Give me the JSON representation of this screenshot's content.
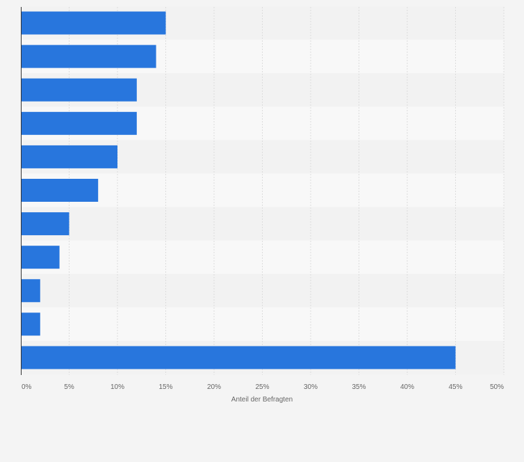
{
  "chart_data": {
    "type": "bar",
    "orientation": "horizontal",
    "title": "",
    "xlabel": "Anteil der Befragten",
    "ylabel": "",
    "categories": [
      "",
      "",
      "",
      "",
      "",
      "",
      "",
      "",
      "",
      "",
      ""
    ],
    "values": [
      15,
      14,
      12,
      12,
      10,
      8,
      5,
      4,
      2,
      2,
      45
    ],
    "xlim": [
      0,
      50
    ],
    "ticks": [
      0,
      5,
      10,
      15,
      20,
      25,
      30,
      35,
      40,
      45,
      50
    ],
    "tick_labels": [
      "0%",
      "5%",
      "10%",
      "15%",
      "20%",
      "25%",
      "30%",
      "35%",
      "40%",
      "45%",
      "50%"
    ],
    "grid": true,
    "legend": "none",
    "colors": {
      "bar": "#2876dd",
      "band_dark": "#f2f2f2",
      "band_light": "#f8f8f8",
      "grid": "#dcdcdc",
      "axis": "#333333",
      "tick_text": "#666666",
      "background": "#f4f4f4"
    }
  }
}
